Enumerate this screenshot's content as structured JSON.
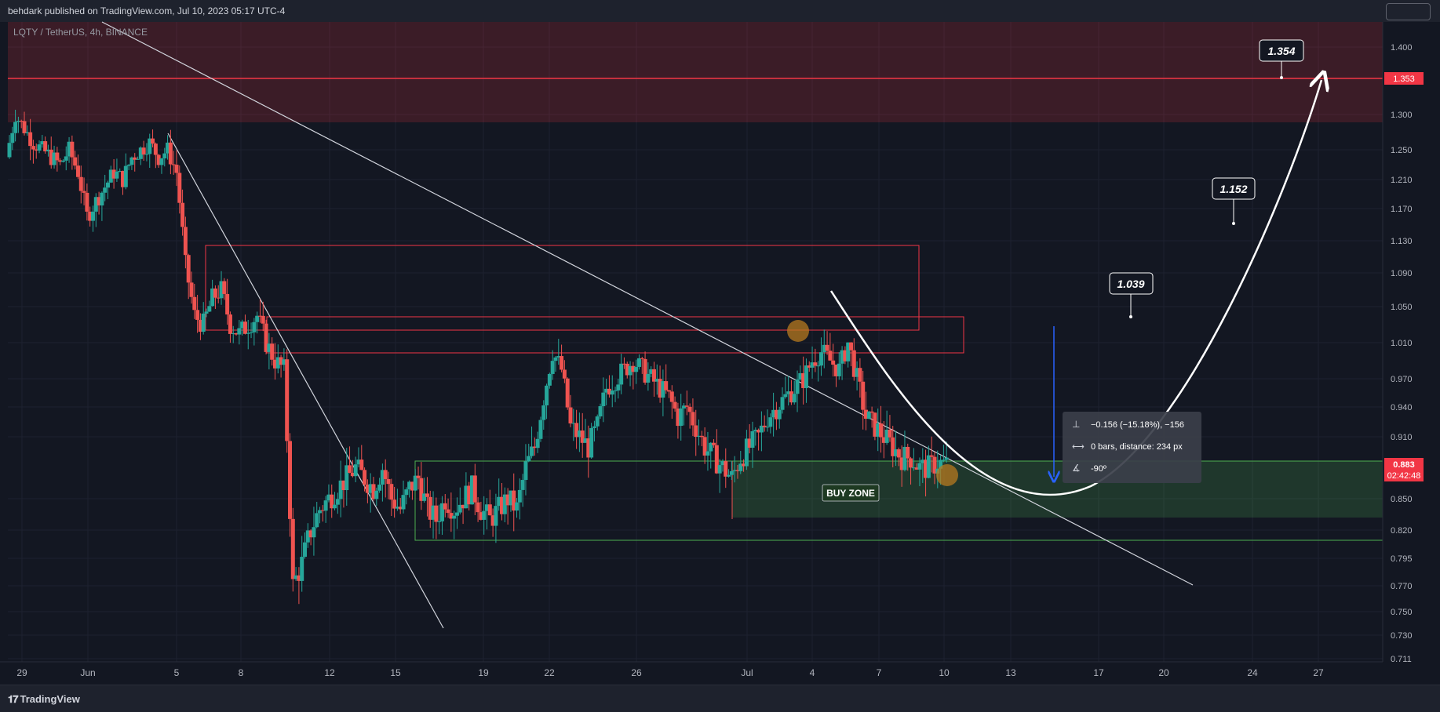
{
  "header": {
    "published": "behdark published on TradingView.com, Jul 10, 2023 05:17 UTC-4"
  },
  "footer": {
    "brand": "TradingView",
    "brand_icon": "tradingview-logo-icon"
  },
  "colors": {
    "background": "#131722",
    "bull": "#26a69a",
    "bear": "#ef5350",
    "resistance_zone": "#f23645",
    "buy_zone": "#4caf50",
    "arrow_blue": "#2962ff",
    "highlight_circle": "#b7791f"
  },
  "chart_data": {
    "type": "candlestick",
    "symbol_label": "LQTY / TetherUS, 4h, BINANCE",
    "y_ticks": [
      "1.400",
      "1.300",
      "1.250",
      "1.210",
      "1.170",
      "1.130",
      "1.090",
      "1.050",
      "1.010",
      "0.970",
      "0.940",
      "0.910",
      "0.850",
      "0.820",
      "0.795",
      "0.770",
      "0.750",
      "0.730",
      "0.711"
    ],
    "x_ticks": [
      "29",
      "Jun",
      "5",
      "8",
      "12",
      "15",
      "19",
      "22",
      "26",
      "Jul",
      "4",
      "7",
      "10",
      "13",
      "17",
      "20",
      "24",
      "27"
    ],
    "last_price": "0.883",
    "countdown": "02:42:48",
    "resistance_line_price": "1.353",
    "price_targets": [
      "1.039",
      "1.152",
      "1.354"
    ],
    "zone_label": "BUY ZONE",
    "measure": {
      "price_change": "−0.156 (−15.18%), −156",
      "bars": "0 bars, distance: 234 px",
      "angle": "-90º"
    },
    "ohlc_path": [
      1.24,
      1.3,
      1.28,
      1.26,
      1.25,
      1.24,
      1.23,
      1.25,
      1.22,
      1.16,
      1.18,
      1.2,
      1.22,
      1.21,
      1.24,
      1.25,
      1.26,
      1.24,
      1.25,
      1.22,
      1.1,
      1.04,
      1.03,
      1.06,
      1.07,
      1.03,
      1.02,
      1.03,
      1.04,
      1.01,
      0.99,
      0.98,
      0.77,
      0.79,
      0.82,
      0.84,
      0.85,
      0.86,
      0.87,
      0.88,
      0.87,
      0.86,
      0.88,
      0.85,
      0.84,
      0.86,
      0.87,
      0.84,
      0.83,
      0.85,
      0.84,
      0.85,
      0.86,
      0.84,
      0.83,
      0.84,
      0.85,
      0.84,
      0.88,
      0.9,
      0.95,
      1.0,
      0.98,
      0.92,
      0.91,
      0.9,
      0.92,
      0.96,
      0.97,
      0.98,
      0.99,
      0.98,
      0.97,
      0.96,
      0.95,
      0.93,
      0.94,
      0.92,
      0.9,
      0.89,
      0.88,
      0.87,
      0.89,
      0.9,
      0.91,
      0.93,
      0.94,
      0.95,
      0.96,
      0.97,
      0.99,
      1.0,
      0.99,
      0.98,
      1.01,
      0.97,
      0.93,
      0.92,
      0.91,
      0.9,
      0.89,
      0.89,
      0.88,
      0.88,
      0.885,
      0.883
    ]
  }
}
